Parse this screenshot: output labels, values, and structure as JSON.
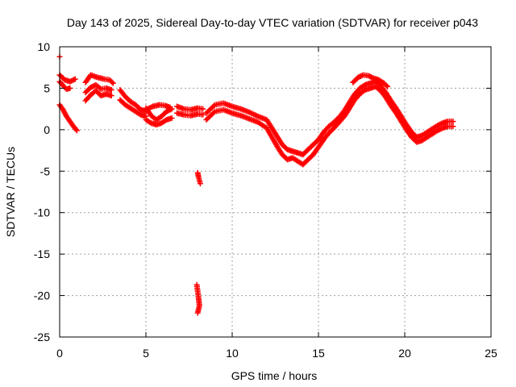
{
  "chart_data": {
    "type": "scatter",
    "title": "Day 143 of 2025, Sidereal Day-to-day VTEC variation (SDTVAR) for receiver p043",
    "xlabel": "GPS time / hours",
    "ylabel": "SDTVAR / TECUs",
    "xlim": [
      0,
      25
    ],
    "ylim": [
      -25,
      10
    ],
    "x_ticks": [
      0,
      5,
      10,
      15,
      20,
      25
    ],
    "y_ticks": [
      -25,
      -20,
      -15,
      -10,
      -5,
      0,
      5,
      10
    ],
    "x_tick_labels": [
      "0",
      "5",
      "10",
      "15",
      "20",
      "25"
    ],
    "y_tick_labels": [
      "-25",
      "-20",
      "-15",
      "-10",
      "-5",
      "0",
      "5",
      "10"
    ],
    "grid": true,
    "marker": "+",
    "colors": {
      "marker": "#ff0000",
      "axis": "#000000",
      "grid": "#a0a0a0",
      "background": "#ffffff"
    },
    "series": [
      {
        "name": "SDTVAR",
        "description": "approximate trace digitized from the plotted points",
        "segments": [
          [
            [
              0.0,
              8.8
            ]
          ],
          [
            [
              0.0,
              6.6
            ],
            [
              0.3,
              6.0
            ],
            [
              0.6,
              5.8
            ],
            [
              0.9,
              6.1
            ]
          ],
          [
            [
              0.0,
              5.8
            ],
            [
              0.2,
              5.3
            ],
            [
              0.4,
              4.9
            ],
            [
              0.6,
              5.0
            ]
          ],
          [
            [
              0.0,
              3.0
            ],
            [
              0.2,
              2.4
            ],
            [
              0.4,
              1.6
            ],
            [
              0.6,
              1.0
            ],
            [
              0.8,
              0.4
            ],
            [
              1.0,
              -0.1
            ]
          ],
          [
            [
              1.5,
              3.5
            ],
            [
              1.8,
              4.2
            ],
            [
              2.1,
              4.7
            ],
            [
              2.4,
              4.1
            ],
            [
              2.7,
              4.3
            ],
            [
              3.0,
              4.1
            ]
          ],
          [
            [
              1.5,
              4.5
            ],
            [
              1.8,
              5.1
            ],
            [
              2.1,
              5.4
            ],
            [
              2.4,
              4.9
            ],
            [
              2.7,
              5.0
            ],
            [
              3.0,
              4.8
            ]
          ],
          [
            [
              1.5,
              5.7
            ],
            [
              1.8,
              6.6
            ],
            [
              2.2,
              6.3
            ],
            [
              2.6,
              6.1
            ],
            [
              2.9,
              6.0
            ],
            [
              3.1,
              5.6
            ]
          ],
          [
            [
              3.5,
              4.8
            ],
            [
              3.8,
              4.0
            ],
            [
              4.1,
              3.4
            ],
            [
              4.4,
              3.0
            ],
            [
              4.7,
              2.4
            ],
            [
              5.0,
              2.2
            ]
          ],
          [
            [
              3.5,
              3.6
            ],
            [
              3.8,
              3.0
            ],
            [
              4.1,
              2.6
            ],
            [
              4.4,
              2.2
            ],
            [
              4.7,
              1.8
            ],
            [
              5.0,
              1.6
            ]
          ],
          [
            [
              5.0,
              2.6
            ],
            [
              5.3,
              1.7
            ],
            [
              5.6,
              1.2
            ],
            [
              5.9,
              1.6
            ],
            [
              6.2,
              2.2
            ],
            [
              6.5,
              2.5
            ]
          ],
          [
            [
              5.0,
              1.2
            ],
            [
              5.3,
              0.8
            ],
            [
              5.6,
              0.6
            ],
            [
              5.9,
              0.8
            ],
            [
              6.2,
              1.2
            ],
            [
              6.5,
              1.4
            ]
          ],
          [
            [
              5.1,
              2.5
            ],
            [
              5.4,
              2.8
            ],
            [
              5.8,
              3.0
            ],
            [
              6.1,
              2.9
            ],
            [
              6.4,
              2.7
            ]
          ],
          [
            [
              6.8,
              2.8
            ],
            [
              7.2,
              2.5
            ],
            [
              7.6,
              2.4
            ],
            [
              8.0,
              2.6
            ],
            [
              8.3,
              2.5
            ]
          ],
          [
            [
              6.8,
              2.0
            ],
            [
              7.2,
              1.8
            ],
            [
              7.6,
              1.7
            ],
            [
              8.0,
              1.9
            ],
            [
              8.3,
              1.8
            ]
          ],
          [
            [
              8.0,
              -5.2
            ],
            [
              8.05,
              -5.7
            ],
            [
              8.1,
              -6.1
            ],
            [
              8.15,
              -6.5
            ]
          ],
          [
            [
              7.95,
              -18.7
            ],
            [
              8.0,
              -19.5
            ],
            [
              8.05,
              -20.3
            ],
            [
              8.1,
              -21.2
            ],
            [
              8.0,
              -22.1
            ]
          ],
          [
            [
              8.5,
              2.0
            ],
            [
              9.0,
              3.0
            ],
            [
              9.5,
              3.2
            ],
            [
              10.0,
              2.8
            ],
            [
              10.5,
              2.5
            ],
            [
              11.0,
              2.1
            ],
            [
              11.5,
              1.6
            ],
            [
              12.0,
              1.2
            ],
            [
              12.3,
              0.2
            ],
            [
              12.6,
              -0.8
            ],
            [
              12.9,
              -1.8
            ],
            [
              13.2,
              -2.4
            ],
            [
              13.5,
              -2.6
            ],
            [
              13.8,
              -2.8
            ],
            [
              14.1,
              -3.0
            ],
            [
              14.4,
              -2.4
            ],
            [
              14.7,
              -1.8
            ],
            [
              15.0,
              -1.2
            ],
            [
              15.3,
              -0.3
            ],
            [
              15.6,
              0.4
            ],
            [
              15.9,
              0.9
            ],
            [
              16.2,
              1.5
            ],
            [
              16.5,
              2.3
            ],
            [
              16.8,
              3.3
            ],
            [
              17.1,
              4.3
            ],
            [
              17.4,
              5.0
            ],
            [
              17.7,
              5.4
            ],
            [
              18.0,
              5.6
            ],
            [
              18.3,
              5.8
            ],
            [
              18.6,
              5.3
            ],
            [
              18.9,
              4.5
            ],
            [
              19.2,
              3.5
            ],
            [
              19.5,
              2.6
            ],
            [
              19.8,
              1.6
            ],
            [
              20.1,
              0.6
            ],
            [
              20.4,
              -0.3
            ],
            [
              20.7,
              -0.9
            ],
            [
              21.0,
              -0.7
            ],
            [
              21.3,
              -0.3
            ],
            [
              21.6,
              0.1
            ],
            [
              21.9,
              0.5
            ],
            [
              22.2,
              0.8
            ],
            [
              22.5,
              1.0
            ],
            [
              22.8,
              1.0
            ]
          ],
          [
            [
              8.5,
              1.2
            ],
            [
              9.0,
              2.2
            ],
            [
              9.5,
              2.4
            ],
            [
              10.0,
              2.0
            ],
            [
              10.5,
              1.7
            ],
            [
              11.0,
              1.3
            ],
            [
              11.5,
              0.9
            ],
            [
              12.0,
              0.2
            ],
            [
              12.3,
              -0.9
            ],
            [
              12.6,
              -2.0
            ],
            [
              12.9,
              -3.0
            ],
            [
              13.2,
              -3.6
            ],
            [
              13.5,
              -3.4
            ],
            [
              13.8,
              -3.8
            ],
            [
              14.1,
              -4.2
            ],
            [
              14.4,
              -3.6
            ],
            [
              14.7,
              -3.0
            ],
            [
              15.0,
              -2.1
            ],
            [
              15.3,
              -1.2
            ],
            [
              15.6,
              -0.4
            ],
            [
              15.9,
              0.2
            ],
            [
              16.2,
              0.9
            ],
            [
              16.5,
              1.6
            ],
            [
              16.8,
              2.6
            ],
            [
              17.1,
              3.6
            ],
            [
              17.4,
              4.3
            ],
            [
              17.7,
              4.8
            ],
            [
              18.0,
              5.0
            ],
            [
              18.3,
              5.2
            ],
            [
              18.6,
              4.7
            ],
            [
              18.9,
              3.9
            ],
            [
              19.2,
              2.9
            ],
            [
              19.5,
              2.0
            ],
            [
              19.8,
              1.0
            ],
            [
              20.1,
              0.0
            ],
            [
              20.4,
              -0.9
            ],
            [
              20.7,
              -1.5
            ],
            [
              21.0,
              -1.3
            ],
            [
              21.3,
              -0.9
            ],
            [
              21.6,
              -0.5
            ],
            [
              21.9,
              -0.1
            ],
            [
              22.2,
              0.2
            ],
            [
              22.5,
              0.4
            ],
            [
              22.8,
              0.4
            ]
          ],
          [
            [
              17.0,
              5.7
            ],
            [
              17.3,
              6.3
            ],
            [
              17.6,
              6.6
            ],
            [
              17.9,
              6.5
            ],
            [
              18.2,
              6.2
            ],
            [
              18.5,
              6.0
            ],
            [
              18.8,
              5.6
            ],
            [
              19.0,
              5.2
            ]
          ]
        ]
      }
    ]
  }
}
